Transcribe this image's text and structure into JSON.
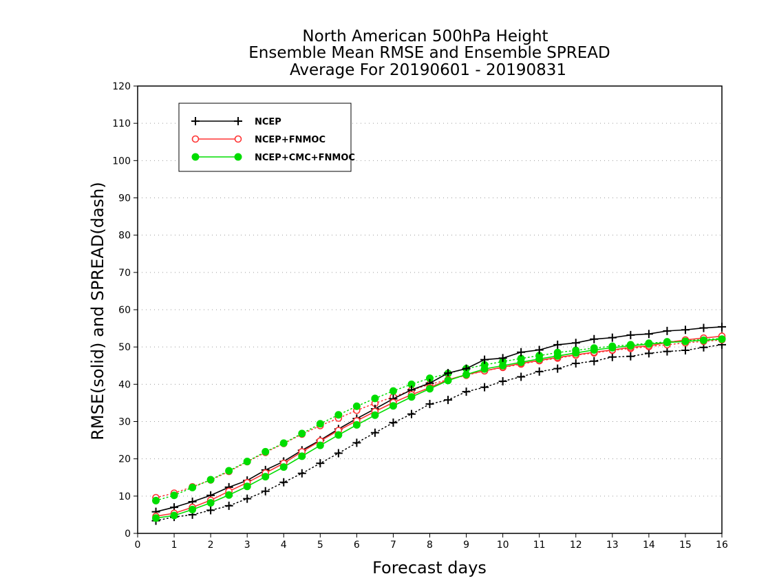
{
  "chart_data": {
    "type": "line",
    "title": [
      "North American 500hPa Height",
      "Ensemble Mean RMSE and Ensemble SPREAD",
      "Average For 20190601 - 20190831"
    ],
    "xlabel": "Forecast days",
    "ylabel": "RMSE(solid) and SPREAD(dash)",
    "xlim": [
      0,
      16
    ],
    "ylim": [
      0,
      120
    ],
    "xticks": [
      "0",
      "1",
      "2",
      "3",
      "4",
      "5",
      "6",
      "7",
      "8",
      "9",
      "10",
      "11",
      "12",
      "13",
      "14",
      "15",
      "16"
    ],
    "yticks": [
      "0",
      "10",
      "20",
      "30",
      "40",
      "50",
      "60",
      "70",
      "80",
      "90",
      "100",
      "110",
      "120"
    ],
    "grid": true,
    "legend_position": "top-left",
    "x": [
      0.5,
      1,
      1.5,
      2,
      2.5,
      3,
      3.5,
      4,
      4.5,
      5,
      5.5,
      6,
      6.5,
      7,
      7.5,
      8,
      8.5,
      9,
      9.5,
      10,
      10.5,
      11,
      11.5,
      12,
      12.5,
      13,
      13.5,
      14,
      14.5,
      15,
      15.5,
      16
    ],
    "series": [
      {
        "name": "NCEP",
        "color": "#000000",
        "marker": "plus",
        "rmse": [
          5.8,
          7.0,
          8.5,
          10.2,
          12.4,
          14.2,
          17.0,
          19.3,
          22.3,
          25.0,
          28.0,
          30.8,
          33.4,
          36.1,
          38.5,
          40.3,
          43.0,
          44.2,
          46.6,
          47.0,
          48.6,
          49.2,
          50.6,
          51.1,
          52.1,
          52.5,
          53.2,
          53.5,
          54.3,
          54.6,
          55.1,
          55.4
        ],
        "spread": [
          3.4,
          4.4,
          5.0,
          6.2,
          7.4,
          9.3,
          11.3,
          13.7,
          16.1,
          18.8,
          21.5,
          24.3,
          27.0,
          29.7,
          32.0,
          34.7,
          35.8,
          38.0,
          39.2,
          40.8,
          42.0,
          43.4,
          44.2,
          45.6,
          46.2,
          47.3,
          47.5,
          48.3,
          48.8,
          49.1,
          49.9,
          50.6
        ]
      },
      {
        "name": "NCEP+FNMOC",
        "color": "#ff3333",
        "marker": "open-circle",
        "rmse": [
          4.6,
          5.4,
          7.0,
          8.9,
          11.3,
          13.6,
          16.2,
          18.8,
          21.9,
          24.8,
          27.6,
          30.2,
          32.7,
          35.1,
          37.2,
          39.1,
          41.2,
          42.6,
          43.6,
          44.6,
          45.6,
          46.4,
          47.2,
          47.9,
          48.6,
          49.2,
          49.9,
          50.3,
          51.2,
          51.9,
          52.4,
          52.9
        ],
        "spread": [
          9.6,
          10.8,
          12.5,
          14.3,
          16.6,
          19.2,
          21.7,
          24.1,
          26.6,
          28.9,
          30.9,
          33.0,
          34.9,
          36.6,
          38.4,
          40.0,
          41.2,
          42.4,
          43.6,
          44.5,
          45.4,
          46.3,
          47.0,
          47.8,
          48.4,
          49.1,
          49.6,
          50.1,
          50.6,
          51.1,
          51.5,
          51.9
        ]
      },
      {
        "name": "NCEP+CMC+FNMOC",
        "color": "#00dd00",
        "marker": "filled-circle",
        "rmse": [
          4.1,
          4.8,
          6.4,
          8.2,
          10.3,
          12.6,
          15.2,
          17.8,
          20.7,
          23.6,
          26.4,
          29.1,
          31.7,
          34.2,
          36.6,
          38.8,
          41.0,
          42.6,
          44.1,
          45.0,
          45.9,
          46.8,
          47.6,
          48.4,
          49.2,
          49.8,
          50.3,
          50.8,
          51.2,
          51.5,
          51.8,
          52.1
        ],
        "spread": [
          8.8,
          10.2,
          12.3,
          14.4,
          16.8,
          19.3,
          21.9,
          24.2,
          26.8,
          29.4,
          31.8,
          34.1,
          36.2,
          38.2,
          40.0,
          41.6,
          42.9,
          44.2,
          45.2,
          46.1,
          46.9,
          47.7,
          48.5,
          49.1,
          49.7,
          50.2,
          50.6,
          51.0,
          51.4,
          51.7,
          52.0,
          52.3
        ]
      }
    ]
  }
}
